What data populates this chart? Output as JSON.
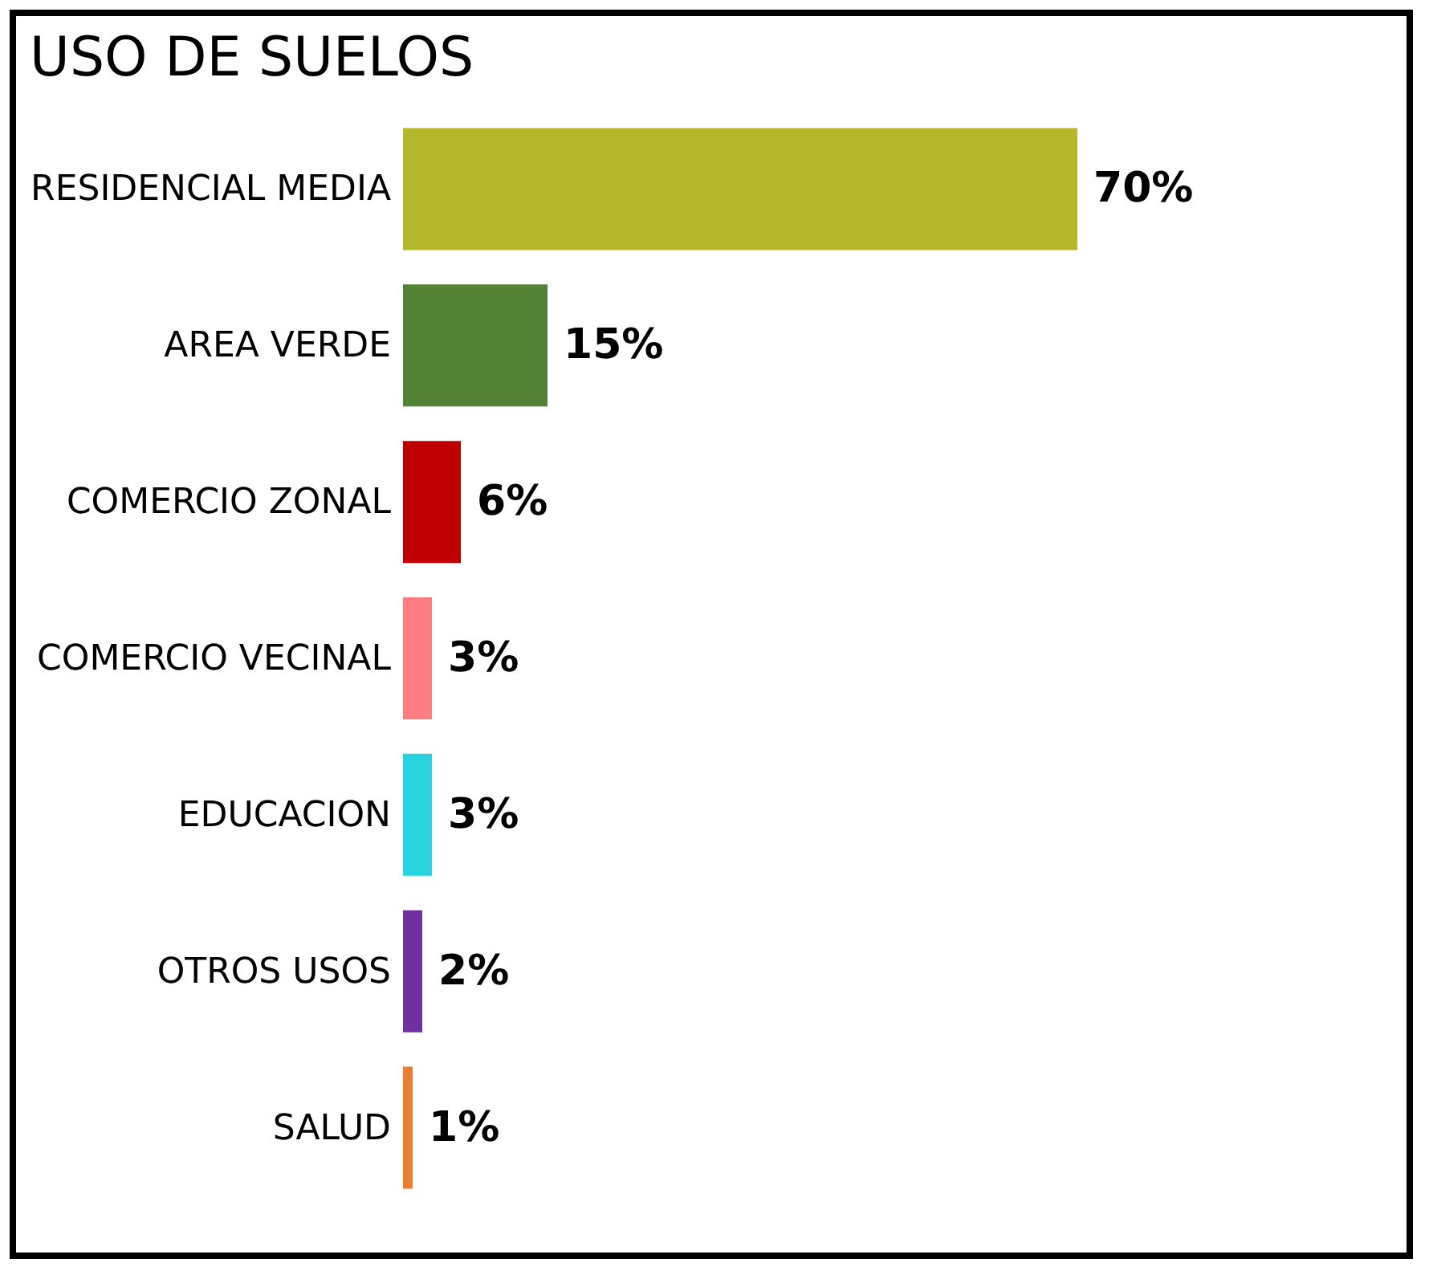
{
  "chart_data": {
    "type": "bar",
    "orientation": "horizontal",
    "title": "USO DE SUELOS",
    "categories": [
      "RESIDENCIAL MEDIA",
      "AREA VERDE",
      "COMERCIO ZONAL",
      "COMERCIO VECINAL",
      "EDUCACION",
      "OTROS USOS",
      "SALUD"
    ],
    "values": [
      70,
      15,
      6,
      3,
      3,
      2,
      1
    ],
    "value_labels": [
      "70%",
      "15%",
      "6%",
      "3%",
      "3%",
      "2%",
      "1%"
    ],
    "colors": [
      "#b5b82b",
      "#548235",
      "#c00000",
      "#ff7c80",
      "#26d3de",
      "#7030a0",
      "#ed7d31"
    ]
  }
}
